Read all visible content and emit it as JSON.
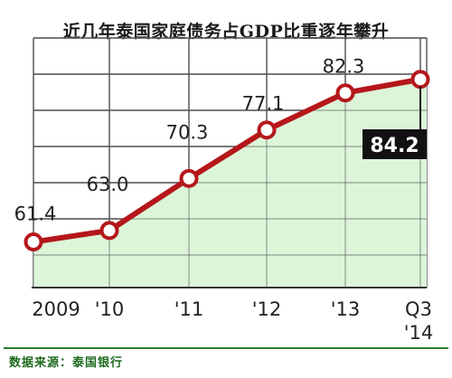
{
  "chart_data": {
    "type": "area",
    "title": "近几年泰国家庭债务占GDP比重逐年攀升",
    "categories": [
      "2009",
      "'10",
      "'11",
      "'12",
      "'13",
      "Q3 '14"
    ],
    "x_tick_labels": [
      [
        "2009"
      ],
      [
        "'10"
      ],
      [
        "'11"
      ],
      [
        "'12"
      ],
      [
        "'13"
      ],
      [
        "Q3",
        "'14"
      ]
    ],
    "series": [
      {
        "values": [
          61.4,
          63.0,
          70.3,
          77.1,
          82.3,
          84.2
        ]
      }
    ],
    "data_labels": [
      "61.4",
      "63.0",
      "70.3",
      "77.1",
      "82.3",
      "84.2"
    ],
    "highlight_label": "84.2",
    "ylim": [
      55,
      90
    ],
    "grid": true,
    "line_color": "#b5171b",
    "fill_color": "#dcf5d9",
    "marker_fill": "#ffffff",
    "highlight_bg": "#111111",
    "highlight_text_color": "#ffffff",
    "source": "数据来源：泰国银行"
  }
}
